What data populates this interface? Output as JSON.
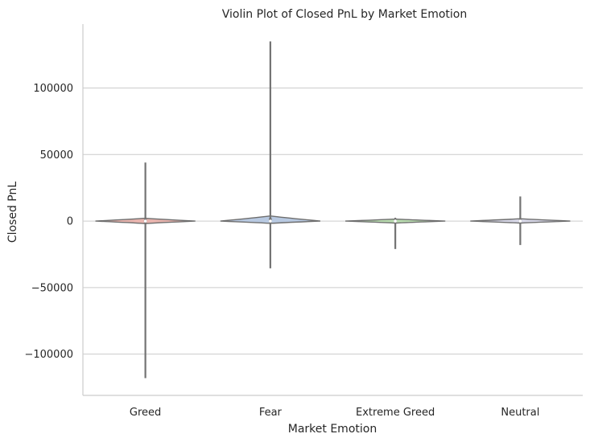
{
  "chart_data": {
    "type": "violin",
    "title": "Violin Plot of Closed PnL by Market Emotion",
    "xlabel": "Market Emotion",
    "ylabel": "Closed PnL",
    "categories": [
      "Greed",
      "Fear",
      "Extreme Greed",
      "Neutral"
    ],
    "ylim": [
      -131000,
      148000
    ],
    "yticks": [
      -100000,
      -50000,
      0,
      50000,
      100000
    ],
    "ytick_labels": [
      "−100000",
      "−50000",
      "0",
      "50000",
      "100000"
    ],
    "grid": "y-axis",
    "series": [
      {
        "category": "Greed",
        "color": "#e8b4ae",
        "min": -118000,
        "max": 44000,
        "median": 0,
        "q1": -500,
        "q3": 600
      },
      {
        "category": "Fear",
        "color": "#b8c9e1",
        "min": -35500,
        "max": 135000,
        "median": 0,
        "q1": -400,
        "q3": 1500
      },
      {
        "category": "Extreme Greed",
        "color": "#b9dcb0",
        "min": -21000,
        "max": 2500,
        "median": 0,
        "q1": -300,
        "q3": 300
      },
      {
        "category": "Neutral",
        "color": "#d6d6e6",
        "min": -18000,
        "max": 18500,
        "median": 0,
        "q1": -300,
        "q3": 400
      }
    ]
  }
}
